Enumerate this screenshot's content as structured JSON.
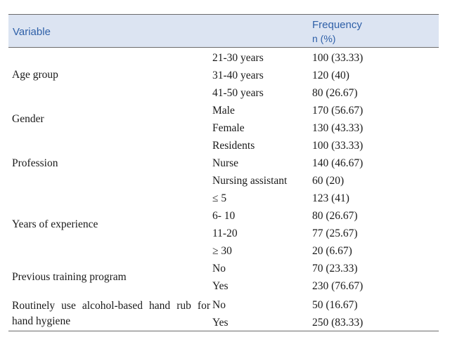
{
  "header": {
    "variable": "Variable",
    "frequency": "Frequency",
    "frequency_unit": "n (%)"
  },
  "groups": [
    {
      "label": "Age group",
      "rows": [
        {
          "category": "21-30 years",
          "frequency": "100 (33.33)"
        },
        {
          "category": "31-40 years",
          "frequency": "120 (40)"
        },
        {
          "category": "41-50 years",
          "frequency": "80 (26.67)"
        }
      ]
    },
    {
      "label": "Gender",
      "rows": [
        {
          "category": "Male",
          "frequency": "170 (56.67)"
        },
        {
          "category": "Female",
          "frequency": "130 (43.33)"
        }
      ]
    },
    {
      "label": "Profession",
      "rows": [
        {
          "category": "Residents",
          "frequency": "100 (33.33)"
        },
        {
          "category": "Nurse",
          "frequency": "140 (46.67)"
        },
        {
          "category": "Nursing assistant",
          "frequency": "60 (20)"
        }
      ]
    },
    {
      "label": "Years of experience",
      "rows": [
        {
          "category": "≤ 5",
          "frequency": "123 (41)"
        },
        {
          "category": "6- 10",
          "frequency": "80 (26.67)"
        },
        {
          "category": "11-20",
          "frequency": "77 (25.67)"
        },
        {
          "category": "≥ 30",
          "frequency": "20 (6.67)"
        }
      ]
    },
    {
      "label": "Previous training program",
      "rows": [
        {
          "category": "No",
          "frequency": "70 (23.33)"
        },
        {
          "category": "Yes",
          "frequency": "230 (76.67)"
        }
      ]
    },
    {
      "label": "Routinely use alcohol-based hand rub for hand hygiene",
      "rows": [
        {
          "category": "No",
          "frequency": "50 (16.67)"
        },
        {
          "category": "Yes",
          "frequency": "250 (83.33)"
        }
      ]
    }
  ]
}
